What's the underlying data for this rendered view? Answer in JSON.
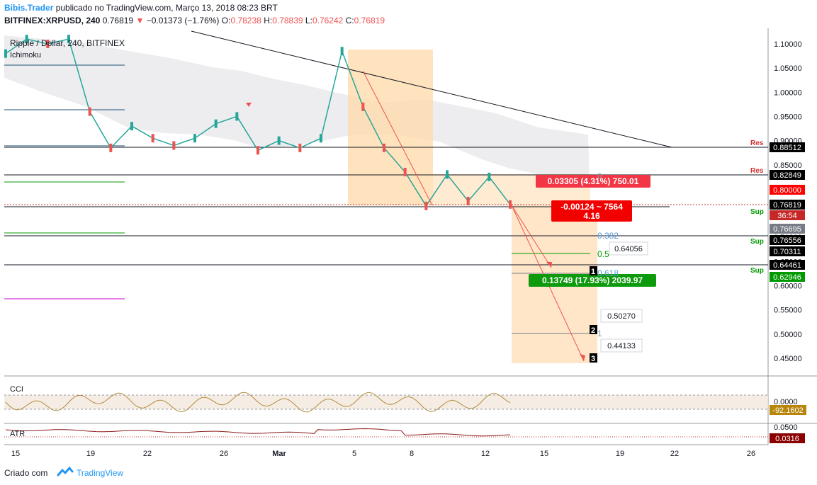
{
  "header": {
    "author": "Bibis.Trader",
    "published": "publicado no TradingView.com, Março 13, 2018 08:23 BRT",
    "symbol": "BITFINEX:XRPUSD, 240",
    "last": "0.76819",
    "change": "−0.01373 (−1.76%)",
    "o_label": "O:",
    "o": "0.78238",
    "h_label": "H:",
    "h": "0.78839",
    "l_label": "L:",
    "l": "0.76242",
    "c_label": "C:",
    "c": "0.76819"
  },
  "chart_data": {
    "type": "line",
    "title": "Ripple / Dollar, 240, BITFINEX",
    "indicator": "Ichimoku",
    "ylim": [
      0.415,
      1.13
    ],
    "y_ticks": [
      "1.10000",
      "1.05000",
      "1.00000",
      "0.95000",
      "0.90000",
      "0.85000",
      "0.80000",
      "0.75000",
      "0.70000",
      "0.65000",
      "0.60000",
      "0.55000",
      "0.50000",
      "0.45000"
    ],
    "x_ticks": [
      "15",
      "19",
      "22",
      "26",
      "Mar",
      "5",
      "8",
      "12",
      "15",
      "19",
      "22",
      "26"
    ],
    "close_path": [
      {
        "day": "15",
        "y": 1.08
      },
      {
        "day": "17",
        "y": 1.11
      },
      {
        "day": "19",
        "y": 1.1
      },
      {
        "day": "20",
        "y": 1.11
      },
      {
        "day": "21",
        "y": 0.96
      },
      {
        "day": "22",
        "y": 0.885
      },
      {
        "day": "23",
        "y": 0.93
      },
      {
        "day": "24",
        "y": 0.905
      },
      {
        "day": "25",
        "y": 0.89
      },
      {
        "day": "26",
        "y": 0.905
      },
      {
        "day": "27",
        "y": 0.935
      },
      {
        "day": "28",
        "y": 0.95
      },
      {
        "day": "Mar",
        "y": 0.88
      },
      {
        "day": "2",
        "y": 0.9
      },
      {
        "day": "3",
        "y": 0.885
      },
      {
        "day": "4",
        "y": 0.905
      },
      {
        "day": "5",
        "y": 1.085
      },
      {
        "day": "6",
        "y": 0.97
      },
      {
        "day": "7",
        "y": 0.885
      },
      {
        "day": "8",
        "y": 0.835
      },
      {
        "day": "9",
        "y": 0.765
      },
      {
        "day": "10",
        "y": 0.83
      },
      {
        "day": "11",
        "y": 0.775
      },
      {
        "day": "12",
        "y": 0.825
      },
      {
        "day": "13",
        "y": 0.768
      }
    ],
    "levels": [
      {
        "label": "Res",
        "price": "0.88512",
        "color": "#000000",
        "tag": "#000000"
      },
      {
        "label": "Res",
        "price": "0.82849",
        "color": "#000000",
        "tag": "#000000"
      },
      {
        "label": "",
        "price": "0.80000",
        "color": "#ff0000",
        "tag": "#ff0000"
      },
      {
        "label": "",
        "price": "0.76819",
        "color": "#000000",
        "tag": "#000000"
      },
      {
        "label": "Sup",
        "price": "0.76556",
        "color": "#000000",
        "tag": "#000000"
      },
      {
        "label": "Sup",
        "price": "0.70311",
        "color": "#000000",
        "tag": "#000000"
      },
      {
        "label": "Sup",
        "price": "0.64461",
        "color": "#000000",
        "tag": "#000000"
      }
    ],
    "price_tags": [
      {
        "text": "0.76695",
        "bg": "#787b86"
      },
      {
        "text": "0.62946",
        "bg": "#009900"
      },
      {
        "text": "36:54",
        "bg": "#333333"
      }
    ],
    "callouts": {
      "res_box": "0.03305 (4.31%) 750.01",
      "mid_box": "-0.00124 ~ 7564",
      "mid_box2": "4.16",
      "sup_box": "0.13749 (17.93%) 2039.97"
    },
    "fib": {
      "l0": "0",
      "l382": "0.382",
      "l5": "0.5",
      "l618": "0.618",
      "l1": "1"
    },
    "fib_labels": [
      "0.64056",
      "0.50270",
      "0.44133"
    ],
    "waves": [
      "1",
      "2",
      "3"
    ],
    "cci": {
      "name": "CCI",
      "value": "-92.1602",
      "tick": "0.0000"
    },
    "atr": {
      "name": "ATR",
      "value": "0.0316",
      "tick": "0.0500"
    }
  },
  "footer": {
    "made_with": "Criado com",
    "brand": "TradingView"
  }
}
